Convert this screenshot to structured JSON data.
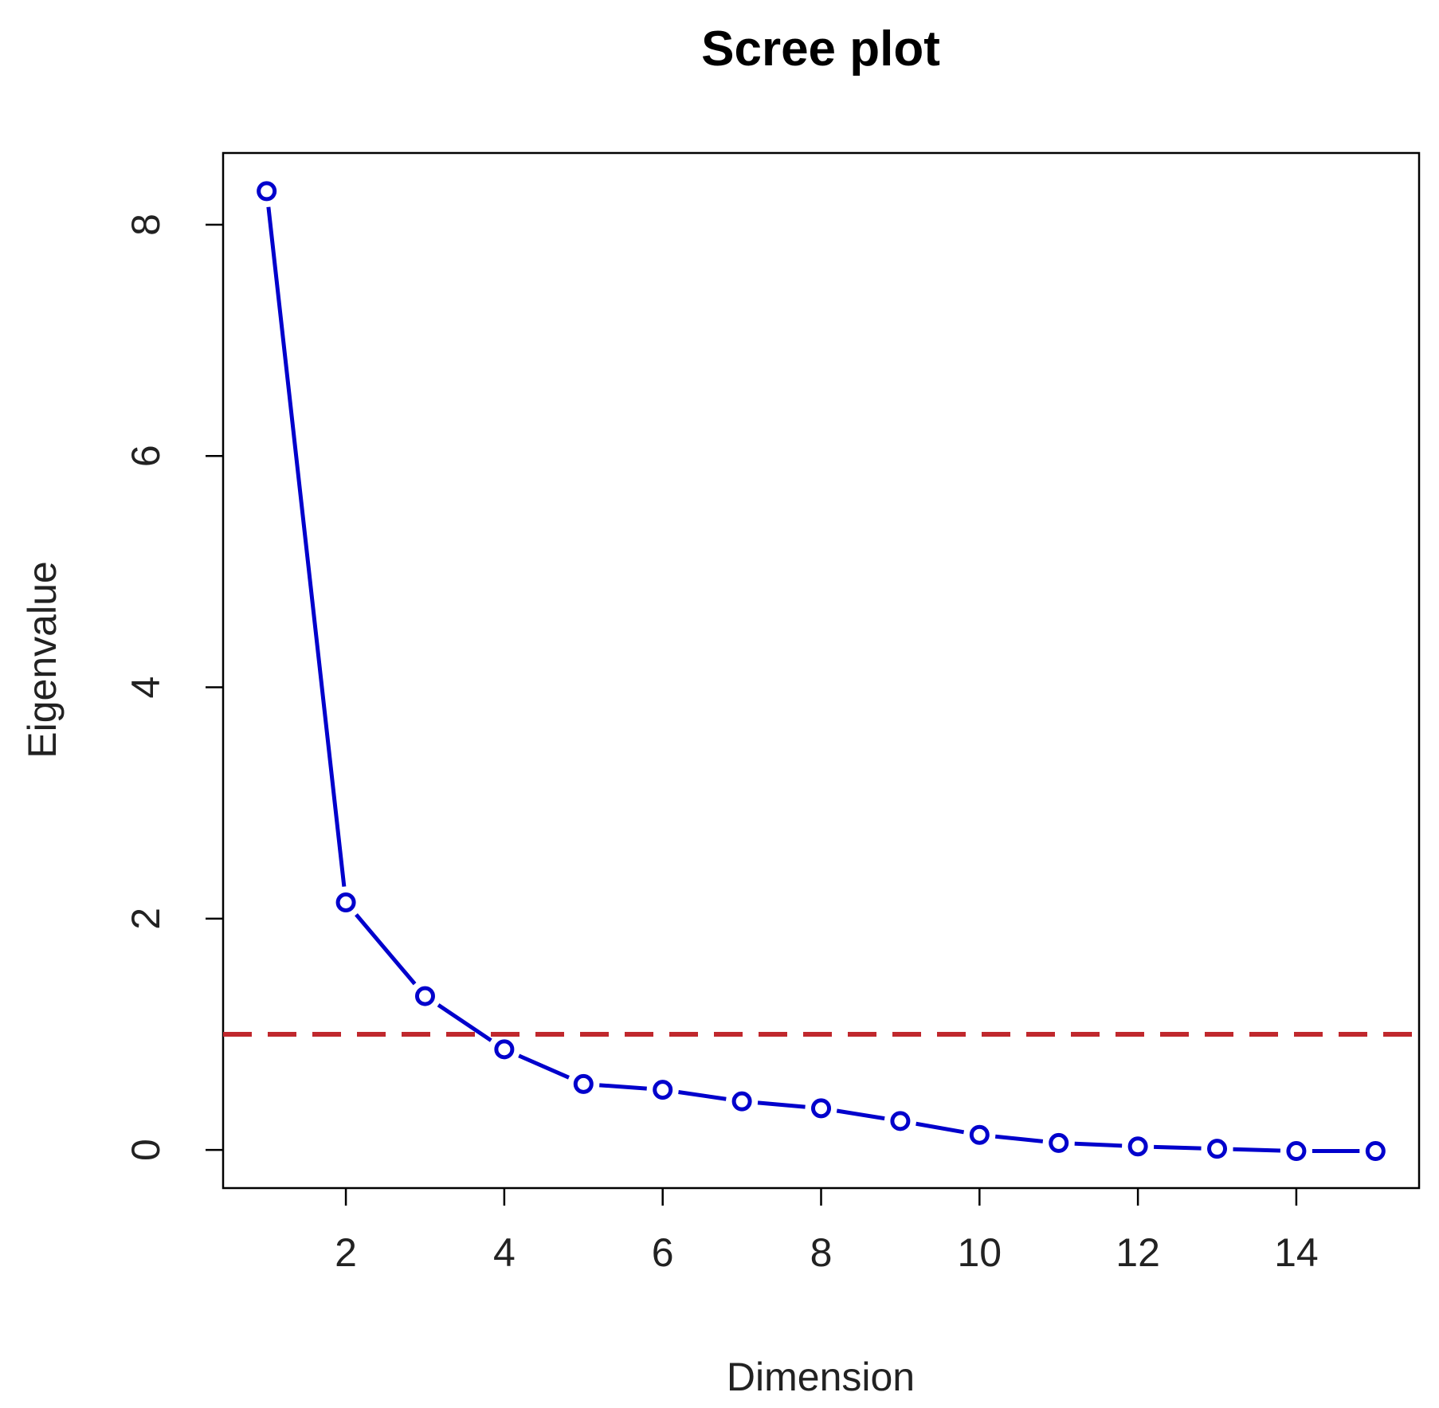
{
  "chart_data": {
    "type": "line",
    "title": "Scree plot",
    "xlabel": "Dimension",
    "ylabel": "Eigenvalue",
    "x": [
      1,
      2,
      3,
      4,
      5,
      6,
      7,
      8,
      9,
      10,
      11,
      12,
      13,
      14,
      15
    ],
    "series": [
      {
        "values": [
          8.29,
          2.14,
          1.33,
          0.87,
          0.57,
          0.52,
          0.42,
          0.36,
          0.25,
          0.13,
          0.06,
          0.03,
          0.01,
          -0.01,
          -0.01
        ],
        "color": "#0000cc"
      }
    ],
    "reference_line": {
      "y": 1,
      "color": "#c0282d",
      "style": "dashed"
    },
    "xlim": [
      0.45,
      15.55
    ],
    "ylim": [
      -0.33,
      8.62
    ],
    "xticks": [
      2,
      4,
      6,
      8,
      10,
      12,
      14
    ],
    "yticks": [
      0,
      2,
      4,
      6,
      8
    ],
    "grid": false,
    "legend": "none"
  }
}
